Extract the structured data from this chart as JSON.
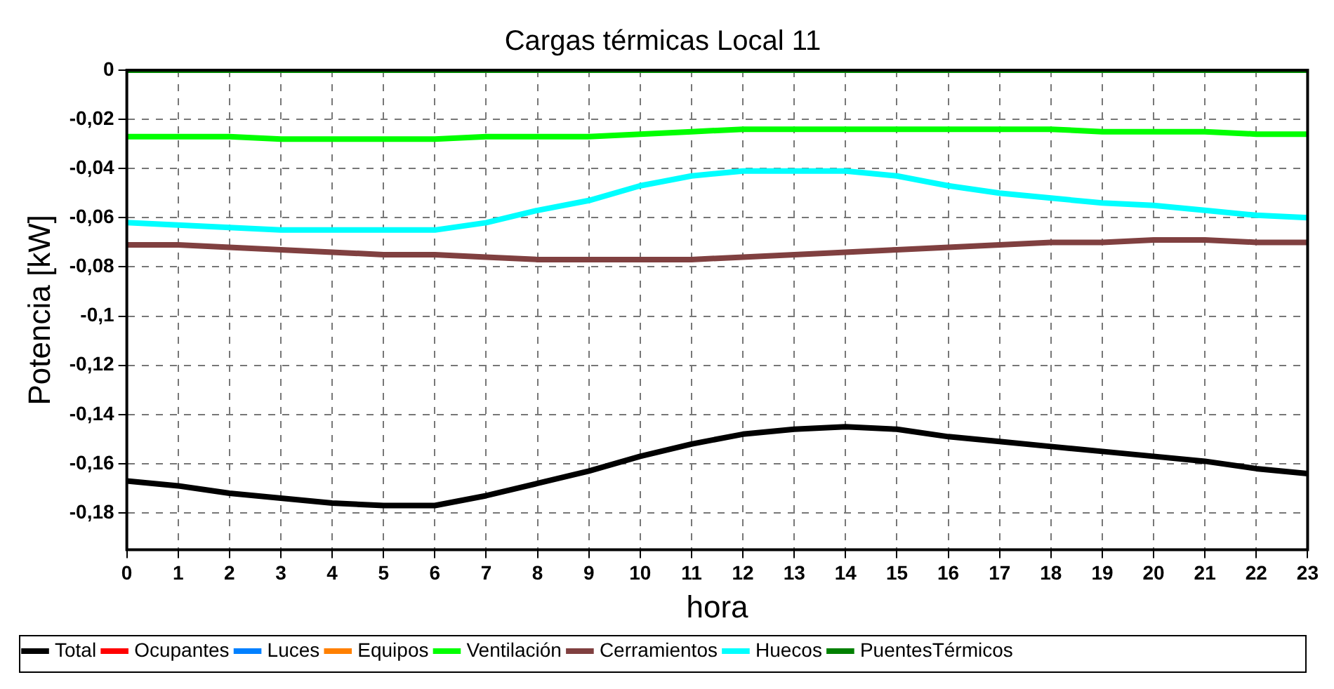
{
  "chart_data": {
    "type": "line",
    "title": "Cargas térmicas Local 11",
    "xlabel": "hora",
    "ylabel": "Potencia [kW]",
    "x": [
      0,
      1,
      2,
      3,
      4,
      5,
      6,
      7,
      8,
      9,
      10,
      11,
      12,
      13,
      14,
      15,
      16,
      17,
      18,
      19,
      20,
      21,
      22,
      23
    ],
    "xlim": [
      0,
      23
    ],
    "xticks": [
      0,
      1,
      2,
      3,
      4,
      5,
      6,
      7,
      8,
      9,
      10,
      11,
      12,
      13,
      14,
      15,
      16,
      17,
      18,
      19,
      20,
      21,
      22,
      23
    ],
    "ylim": [
      -0.195,
      0
    ],
    "yticks": [
      {
        "value": 0,
        "label": "0"
      },
      {
        "value": -0.02,
        "label": "-0,02"
      },
      {
        "value": -0.04,
        "label": "-0,04"
      },
      {
        "value": -0.06,
        "label": "-0,06"
      },
      {
        "value": -0.08,
        "label": "-0,08"
      },
      {
        "value": -0.1,
        "label": "-0,1"
      },
      {
        "value": -0.12,
        "label": "-0,12"
      },
      {
        "value": -0.14,
        "label": "-0,14"
      },
      {
        "value": -0.16,
        "label": "-0,16"
      },
      {
        "value": -0.18,
        "label": "-0,18"
      }
    ],
    "grid": true,
    "legend": "bottom",
    "marker": "none",
    "line_style": "solid",
    "series": [
      {
        "name": "Total",
        "color": "#000000",
        "values": [
          -0.167,
          -0.169,
          -0.172,
          -0.174,
          -0.176,
          -0.177,
          -0.177,
          -0.173,
          -0.168,
          -0.163,
          -0.157,
          -0.152,
          -0.148,
          -0.146,
          -0.145,
          -0.146,
          -0.149,
          -0.151,
          -0.153,
          -0.155,
          -0.157,
          -0.159,
          -0.162,
          -0.164
        ]
      },
      {
        "name": "Ocupantes",
        "color": "#ff0000",
        "values": [
          null,
          null,
          null,
          null,
          null,
          null,
          null,
          null,
          null,
          null,
          null,
          null,
          null,
          null,
          null,
          null,
          null,
          null,
          null,
          null,
          null,
          null,
          null,
          null
        ]
      },
      {
        "name": "Luces",
        "color": "#0080ff",
        "values": [
          null,
          null,
          null,
          null,
          null,
          null,
          null,
          null,
          null,
          null,
          null,
          null,
          null,
          null,
          null,
          null,
          null,
          null,
          null,
          null,
          null,
          null,
          null,
          null
        ]
      },
      {
        "name": "Equipos",
        "color": "#ff8000",
        "values": [
          null,
          null,
          null,
          null,
          null,
          null,
          null,
          null,
          null,
          null,
          null,
          null,
          null,
          null,
          null,
          null,
          null,
          null,
          null,
          null,
          null,
          null,
          null,
          null
        ]
      },
      {
        "name": "Ventilación",
        "color": "#00ff00",
        "values": [
          -0.027,
          -0.027,
          -0.027,
          -0.028,
          -0.028,
          -0.028,
          -0.028,
          -0.027,
          -0.027,
          -0.027,
          -0.026,
          -0.025,
          -0.024,
          -0.024,
          -0.024,
          -0.024,
          -0.024,
          -0.024,
          -0.024,
          -0.025,
          -0.025,
          -0.025,
          -0.026,
          -0.026
        ]
      },
      {
        "name": "Cerramientos",
        "color": "#804040",
        "values": [
          -0.071,
          -0.071,
          -0.072,
          -0.073,
          -0.074,
          -0.075,
          -0.075,
          -0.076,
          -0.077,
          -0.077,
          -0.077,
          -0.077,
          -0.076,
          -0.075,
          -0.074,
          -0.073,
          -0.072,
          -0.071,
          -0.07,
          -0.07,
          -0.069,
          -0.069,
          -0.07,
          -0.07
        ]
      },
      {
        "name": "Huecos",
        "color": "#00ffff",
        "values": [
          -0.062,
          -0.063,
          -0.064,
          -0.065,
          -0.065,
          -0.065,
          -0.065,
          -0.062,
          -0.057,
          -0.053,
          -0.047,
          -0.043,
          -0.041,
          -0.041,
          -0.041,
          -0.043,
          -0.047,
          -0.05,
          -0.052,
          -0.054,
          -0.055,
          -0.057,
          -0.059,
          -0.06
        ]
      },
      {
        "name": "PuentesTérmicos",
        "color": "#008000",
        "values": [
          0,
          0,
          0,
          0,
          0,
          0,
          0,
          0,
          0,
          0,
          0,
          0,
          0,
          0,
          0,
          0,
          0,
          0,
          0,
          0,
          0,
          0,
          0,
          0
        ]
      }
    ]
  }
}
